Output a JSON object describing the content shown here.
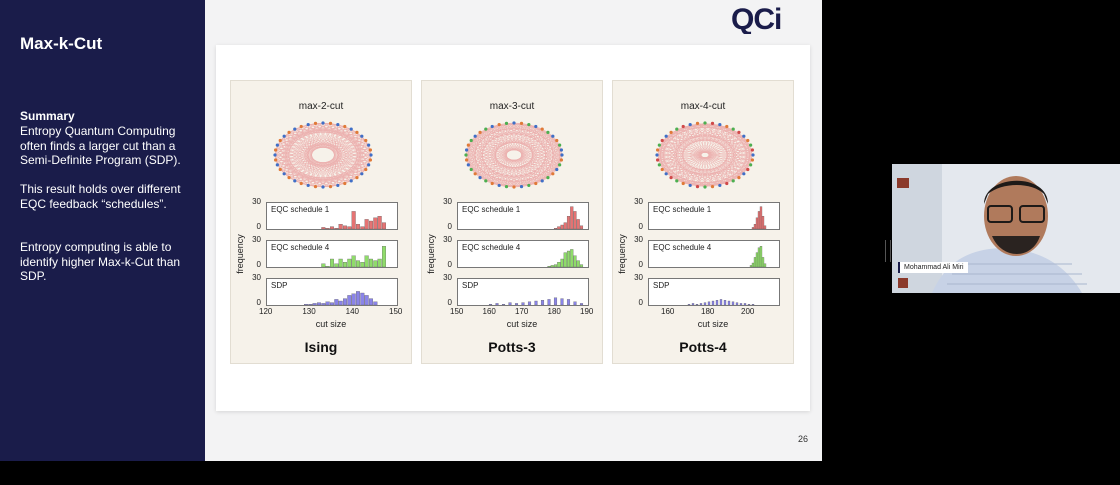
{
  "slide": {
    "title": "Max-k-Cut",
    "summary_heading": "Summary",
    "summary_paragraphs": [
      "Entropy Quantum Computing often finds a larger cut than a Semi-Definite Program (SDP).",
      "This result holds over different EQC feedback “schedules”.",
      "Entropy computing is able to identify higher Max-k-Cut than SDP."
    ],
    "logo_text": "QCi",
    "page_number": "26",
    "brand_color": "#1a1c4a"
  },
  "colors": {
    "schedule1": "#e57373",
    "schedule4": "#8fdc6a",
    "sdp": "#8a84e8",
    "edge": "#e9a0a0"
  },
  "chart_data": [
    {
      "type": "bar",
      "title": "max-2-cut",
      "footer": "Ising",
      "xlabel": "cut size",
      "ylabel": "frequency",
      "xlim": [
        120,
        150
      ],
      "xticks": [
        "120",
        "130",
        "140",
        "150"
      ],
      "ylim": [
        0,
        30
      ],
      "yticks": [
        "0",
        "30"
      ],
      "series": [
        {
          "name": "EQC schedule 1",
          "x": [
            133,
            134,
            135,
            136,
            137,
            138,
            139,
            140,
            141,
            142,
            143,
            144,
            145,
            146,
            147
          ],
          "values": [
            2,
            1,
            3,
            1,
            6,
            4,
            3,
            22,
            6,
            3,
            12,
            10,
            14,
            16,
            8
          ]
        },
        {
          "name": "EQC schedule 4",
          "x": [
            133,
            134,
            135,
            136,
            137,
            138,
            139,
            140,
            141,
            142,
            143,
            144,
            145,
            146,
            147
          ],
          "values": [
            4,
            1,
            10,
            4,
            10,
            6,
            10,
            14,
            8,
            6,
            14,
            10,
            8,
            10,
            26
          ]
        },
        {
          "name": "SDP",
          "x": [
            129,
            130,
            131,
            132,
            133,
            134,
            135,
            136,
            137,
            138,
            139,
            140,
            141,
            142,
            143,
            144,
            145
          ],
          "values": [
            1,
            1,
            2,
            3,
            2,
            4,
            3,
            7,
            5,
            8,
            12,
            14,
            17,
            15,
            12,
            8,
            4
          ]
        }
      ]
    },
    {
      "type": "bar",
      "title": "max-3-cut",
      "footer": "Potts-3",
      "xlabel": "cut size",
      "ylabel": "frequency",
      "xlim": [
        150,
        190
      ],
      "xticks": [
        "150",
        "160",
        "170",
        "180",
        "190"
      ],
      "ylim": [
        0,
        30
      ],
      "yticks": [
        "0",
        "30"
      ],
      "series": [
        {
          "name": "EQC schedule 1",
          "x": [
            180,
            181,
            182,
            183,
            184,
            185,
            186,
            187,
            188
          ],
          "values": [
            1,
            3,
            5,
            8,
            16,
            28,
            22,
            12,
            4
          ]
        },
        {
          "name": "EQC schedule 4",
          "x": [
            178,
            179,
            180,
            181,
            182,
            183,
            184,
            185,
            186,
            187,
            188
          ],
          "values": [
            1,
            2,
            3,
            6,
            10,
            18,
            20,
            22,
            14,
            8,
            3
          ]
        },
        {
          "name": "SDP",
          "x": [
            160,
            162,
            164,
            166,
            168,
            170,
            172,
            174,
            176,
            178,
            180,
            182,
            184,
            186,
            188
          ],
          "values": [
            1,
            2,
            1,
            3,
            2,
            3,
            4,
            5,
            6,
            7,
            9,
            8,
            7,
            4,
            2
          ]
        }
      ]
    },
    {
      "type": "bar",
      "title": "max-4-cut",
      "footer": "Potts-4",
      "xlabel": "cut size",
      "ylabel": "frequency",
      "xlim": [
        150,
        215
      ],
      "xticks": [
        "160",
        "180",
        "200"
      ],
      "ylim": [
        0,
        30
      ],
      "yticks": [
        "0",
        "30"
      ],
      "series": [
        {
          "name": "EQC schedule 1",
          "x": [
            202,
            203,
            204,
            205,
            206,
            207,
            208
          ],
          "values": [
            2,
            6,
            14,
            22,
            28,
            16,
            4
          ]
        },
        {
          "name": "EQC schedule 4",
          "x": [
            201,
            202,
            203,
            204,
            205,
            206,
            207,
            208
          ],
          "values": [
            2,
            5,
            12,
            18,
            24,
            26,
            12,
            4
          ]
        },
        {
          "name": "SDP",
          "x": [
            170,
            172,
            174,
            176,
            178,
            180,
            182,
            184,
            186,
            188,
            190,
            192,
            194,
            196,
            198,
            200,
            202
          ],
          "values": [
            1,
            2,
            1,
            2,
            3,
            4,
            5,
            6,
            7,
            6,
            5,
            4,
            3,
            2,
            2,
            1,
            1
          ]
        }
      ]
    }
  ],
  "video": {
    "participant_name": "Mohammad Ali Miri"
  }
}
